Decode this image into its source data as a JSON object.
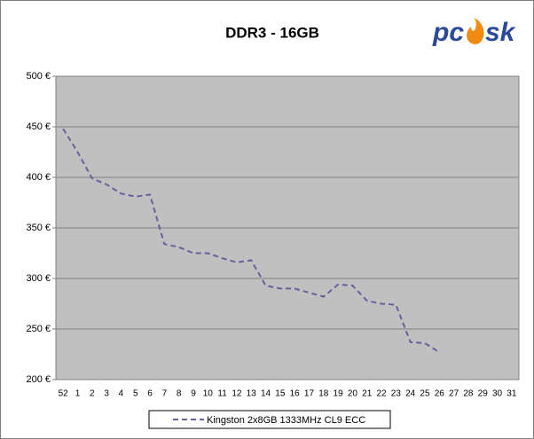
{
  "chart_data": {
    "type": "line",
    "title": "DDR3 - 16GB",
    "logo": [
      "pc",
      "sk"
    ],
    "categories": [
      "52",
      "1",
      "2",
      "3",
      "4",
      "5",
      "6",
      "7",
      "8",
      "9",
      "10",
      "11",
      "12",
      "13",
      "14",
      "15",
      "16",
      "17",
      "18",
      "19",
      "20",
      "21",
      "22",
      "23",
      "24",
      "25",
      "26",
      "27",
      "28",
      "29",
      "30",
      "31"
    ],
    "series": [
      {
        "name": "Kingston 2x8GB 1333MHz CL9 ECC",
        "color": "#6f5c9e",
        "values": [
          448,
          425,
          399,
          393,
          384,
          381,
          383,
          334,
          331,
          325,
          325,
          320,
          316,
          318,
          293,
          290,
          290,
          286,
          282,
          294,
          293,
          278,
          275,
          274,
          237,
          236,
          227,
          null,
          null,
          null,
          null,
          null
        ]
      }
    ],
    "ylim": [
      200,
      500
    ],
    "yticks": [
      {
        "value": 200,
        "label": "200 €"
      },
      {
        "value": 250,
        "label": "250 €"
      },
      {
        "value": 300,
        "label": "300 €"
      },
      {
        "value": 350,
        "label": "350 €"
      },
      {
        "value": 400,
        "label": "400 €"
      },
      {
        "value": 450,
        "label": "450 €"
      },
      {
        "value": 500,
        "label": "500 €"
      }
    ],
    "grid": true,
    "legend": "bottom"
  }
}
